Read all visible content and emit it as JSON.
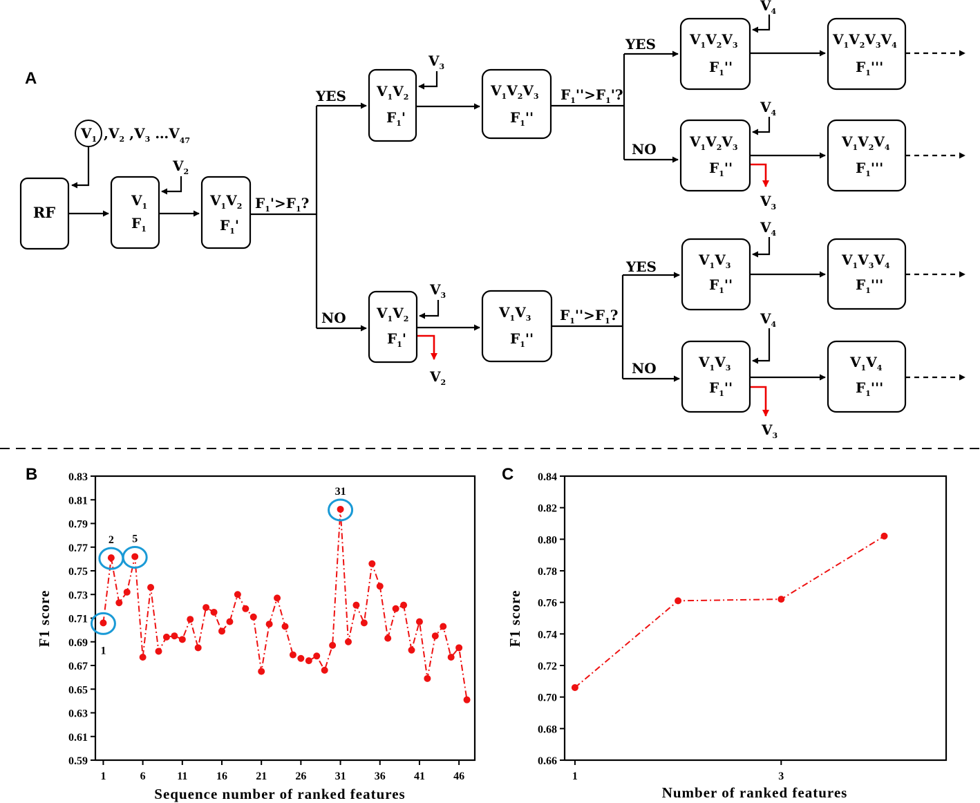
{
  "panels": {
    "a": "A",
    "b": "B",
    "c": "C"
  },
  "flowchart": {
    "start": {
      "main": "RF"
    },
    "selected_var": "V",
    "selected_var_sub": "1",
    "variable_list": {
      "v2": ",V",
      "v2_sub": "2",
      "v3": ",V",
      "v3_sub": "3",
      "dots": "…V",
      "v47_sub": "47"
    },
    "cond_1": {
      "left": "F",
      "left_sub": "1",
      "mid": "'>F",
      "right_sub": "1",
      "end": "?"
    },
    "cond_2": {
      "left": "F",
      "left_sub": "1",
      "mid": "''>F",
      "right_sub": "1",
      "end": "'?"
    },
    "cond_3": {
      "left": "F",
      "left_sub": "1",
      "mid": "''>F",
      "right_sub": "1",
      "end": "?"
    },
    "yes": "YES",
    "no": "NO",
    "v": "V",
    "f": "F",
    "s1": "1",
    "s2": "2",
    "s3": "3",
    "s4": "4",
    "prime1": "'",
    "prime2": "''",
    "prime3": "'''"
  },
  "chart_data": [
    {
      "type": "line",
      "panel": "B",
      "title": "",
      "xlabel": "Sequence number of ranked features",
      "ylabel": "F1  score",
      "xlim": [
        0,
        48
      ],
      "ylim": [
        0.59,
        0.83
      ],
      "xticks": [
        1,
        6,
        11,
        16,
        21,
        26,
        31,
        36,
        41,
        46
      ],
      "yticks": [
        0.59,
        0.61,
        0.63,
        0.65,
        0.67,
        0.69,
        0.71,
        0.73,
        0.75,
        0.77,
        0.79,
        0.81,
        0.83
      ],
      "x": [
        1,
        2,
        3,
        4,
        5,
        6,
        7,
        8,
        9,
        10,
        11,
        12,
        13,
        14,
        15,
        16,
        17,
        18,
        19,
        20,
        21,
        22,
        23,
        24,
        25,
        26,
        27,
        28,
        29,
        30,
        31,
        32,
        33,
        34,
        35,
        36,
        37,
        38,
        39,
        40,
        41,
        42,
        43,
        44,
        45,
        46,
        47
      ],
      "values": [
        0.706,
        0.761,
        0.723,
        0.732,
        0.762,
        0.677,
        0.736,
        0.682,
        0.694,
        0.695,
        0.692,
        0.709,
        0.685,
        0.719,
        0.715,
        0.699,
        0.707,
        0.73,
        0.718,
        0.711,
        0.665,
        0.705,
        0.727,
        0.703,
        0.679,
        0.676,
        0.674,
        0.678,
        0.666,
        0.687,
        0.802,
        0.69,
        0.721,
        0.706,
        0.756,
        0.737,
        0.693,
        0.718,
        0.721,
        0.683,
        0.707,
        0.659,
        0.695,
        0.703,
        0.677,
        0.685,
        0.641
      ],
      "highlighted": [
        {
          "x": 1,
          "label": "1"
        },
        {
          "x": 2,
          "label": "2"
        },
        {
          "x": 5,
          "label": "5"
        },
        {
          "x": 31,
          "label": "31"
        }
      ]
    },
    {
      "type": "line",
      "panel": "C",
      "title": "",
      "xlabel": "Number of ranked features",
      "ylabel": "F1  score",
      "xlim": [
        0.9,
        4.6
      ],
      "ylim": [
        0.66,
        0.84
      ],
      "xticks": [
        1,
        3
      ],
      "yticks": [
        0.66,
        0.68,
        0.7,
        0.72,
        0.74,
        0.76,
        0.78,
        0.8,
        0.82,
        0.84
      ],
      "x": [
        1,
        2,
        3,
        4
      ],
      "values": [
        0.706,
        0.761,
        0.762,
        0.802
      ]
    }
  ]
}
